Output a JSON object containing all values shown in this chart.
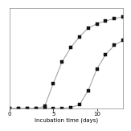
{
  "hen_x": [
    0,
    1,
    2,
    3,
    4,
    5,
    6,
    7,
    8,
    9,
    10,
    11,
    12,
    13
  ],
  "hen_y": [
    0,
    0,
    0,
    0,
    0.3,
    3.5,
    6.5,
    8.5,
    10.0,
    11.2,
    11.8,
    12.2,
    12.5,
    12.8
  ],
  "silky_x": [
    0,
    1,
    2,
    3,
    4,
    5,
    6,
    7,
    8,
    9,
    10,
    11,
    12,
    13
  ],
  "silky_y": [
    0,
    0,
    0,
    0,
    0,
    0,
    0,
    0.15,
    0.5,
    2.5,
    5.5,
    7.5,
    8.8,
    9.5
  ],
  "xlabel": "Incubation time (days)",
  "xlim": [
    0,
    13
  ],
  "ylim": [
    0,
    14
  ],
  "xticks": [
    0,
    5,
    10
  ],
  "line_color": "#999999",
  "marker_color": "#111111",
  "bg_color": "#ffffff",
  "xlabel_fontsize": 5.0,
  "tick_fontsize": 5.0
}
